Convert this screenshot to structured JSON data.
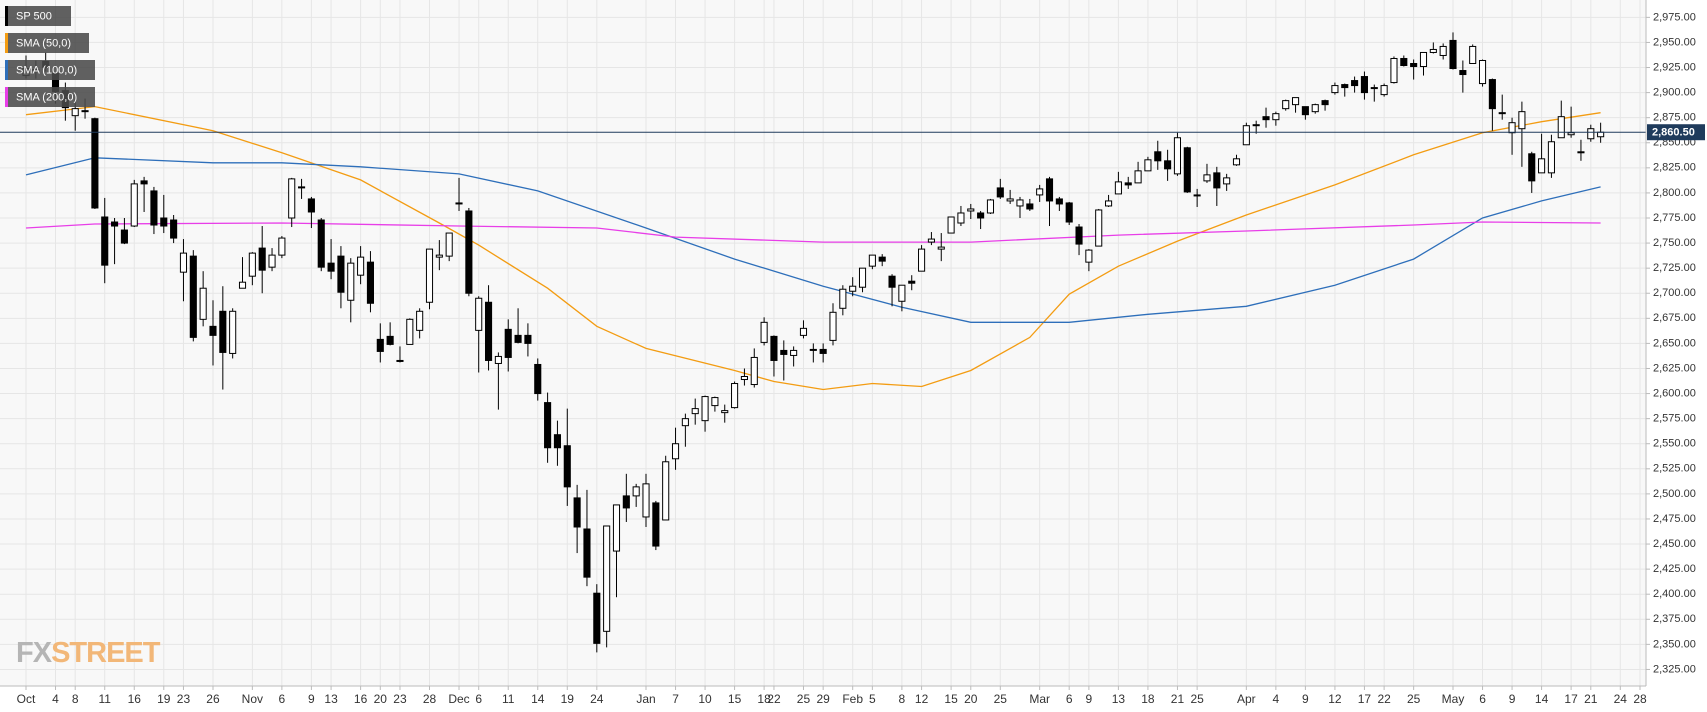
{
  "chart_data": {
    "type": "candlestick",
    "candle_style": {
      "name": "SP 500",
      "color": "#000000",
      "up_color": "#ffffff",
      "down_color": "#000000"
    },
    "categories": [
      "Oct",
      null,
      null,
      "4",
      null,
      "8",
      null,
      null,
      "11",
      null,
      null,
      "16",
      null,
      null,
      "19",
      null,
      "23",
      null,
      null,
      "26",
      null,
      null,
      null,
      "Nov",
      null,
      null,
      "6",
      null,
      null,
      "9",
      null,
      "13",
      null,
      null,
      "16",
      null,
      "20",
      null,
      "23",
      null,
      null,
      "28",
      null,
      null,
      "Dec",
      null,
      "6",
      null,
      null,
      "11",
      null,
      null,
      "14",
      null,
      null,
      "19",
      null,
      null,
      "24",
      null,
      null,
      null,
      null,
      "Jan",
      null,
      null,
      "7",
      null,
      null,
      "10",
      null,
      null,
      "15",
      null,
      null,
      "18",
      "22",
      null,
      null,
      "25",
      null,
      "29",
      null,
      null,
      "Feb",
      null,
      "5",
      null,
      null,
      "8",
      null,
      "12",
      null,
      null,
      "15",
      null,
      "20",
      null,
      null,
      "25",
      null,
      null,
      null,
      "Mar",
      null,
      null,
      "6",
      null,
      "9",
      null,
      null,
      "13",
      null,
      null,
      "18",
      null,
      null,
      "21",
      null,
      "25",
      null,
      null,
      null,
      null,
      "Apr",
      null,
      null,
      "4",
      null,
      null,
      "9",
      null,
      null,
      "12",
      null,
      null,
      "17",
      null,
      "22",
      null,
      null,
      "25",
      null,
      null,
      null,
      "May",
      null,
      null,
      "6",
      null,
      null,
      "9",
      null,
      null,
      "14",
      null,
      null,
      "17",
      null,
      "21",
      null,
      null,
      "24",
      null,
      "28"
    ],
    "candles": [
      [
        2917,
        2937,
        2914,
        2924
      ],
      [
        2923,
        2932,
        2914,
        2923
      ],
      [
        2931,
        2940,
        2921,
        2925
      ],
      [
        2919,
        2920,
        2889,
        2901
      ],
      [
        2902,
        2910,
        2872,
        2885
      ],
      [
        2877,
        2894,
        2862,
        2884
      ],
      [
        2882,
        2894,
        2874,
        2881
      ],
      [
        2874,
        2875,
        2784,
        2785
      ],
      [
        2776,
        2795,
        2710,
        2728
      ],
      [
        2771,
        2775,
        2729,
        2767
      ],
      [
        2763,
        2775,
        2749,
        2750
      ],
      [
        2767,
        2813,
        2766,
        2809
      ],
      [
        2812,
        2816,
        2781,
        2809
      ],
      [
        2802,
        2806,
        2759,
        2768
      ],
      [
        2775,
        2798,
        2760,
        2767
      ],
      [
        2773,
        2778,
        2750,
        2755
      ],
      [
        2721,
        2754,
        2692,
        2740
      ],
      [
        2737,
        2743,
        2652,
        2656
      ],
      [
        2674,
        2722,
        2667,
        2705
      ],
      [
        2667,
        2693,
        2628,
        2658
      ],
      [
        2682,
        2707,
        2604,
        2641
      ],
      [
        2640,
        2685,
        2635,
        2682
      ],
      [
        2705,
        2736,
        2705,
        2711
      ],
      [
        2717,
        2741,
        2708,
        2740
      ],
      [
        2745,
        2767,
        2700,
        2723
      ],
      [
        2726,
        2745,
        2722,
        2738
      ],
      [
        2738,
        2757,
        2735,
        2755
      ],
      [
        2775,
        2815,
        2766,
        2814
      ],
      [
        2806,
        2814,
        2794,
        2806
      ],
      [
        2794,
        2796,
        2765,
        2781
      ],
      [
        2773,
        2775,
        2722,
        2726
      ],
      [
        2730,
        2754,
        2714,
        2722
      ],
      [
        2737,
        2747,
        2685,
        2701
      ],
      [
        2693,
        2735,
        2671,
        2730
      ],
      [
        2718,
        2747,
        2709,
        2736
      ],
      [
        2731,
        2742,
        2681,
        2690
      ],
      [
        2654,
        2670,
        2631,
        2642
      ],
      [
        2657,
        2671,
        2648,
        2649
      ],
      [
        2633,
        2647,
        2631,
        2633
      ],
      [
        2649,
        2675,
        2649,
        2674
      ],
      [
        2663,
        2685,
        2655,
        2682
      ],
      [
        2691,
        2744,
        2684,
        2744
      ],
      [
        2736,
        2753,
        2723,
        2738
      ],
      [
        2737,
        2760,
        2732,
        2760
      ],
      [
        2790,
        2815,
        2782,
        2790
      ],
      [
        2782,
        2785,
        2697,
        2700
      ],
      [
        2663,
        2697,
        2621,
        2695
      ],
      [
        2691,
        2708,
        2623,
        2633
      ],
      [
        2630,
        2641,
        2584,
        2637
      ],
      [
        2664,
        2674,
        2622,
        2636
      ],
      [
        2658,
        2685,
        2650,
        2651
      ],
      [
        2658,
        2670,
        2637,
        2650
      ],
      [
        2629,
        2635,
        2593,
        2600
      ],
      [
        2591,
        2601,
        2531,
        2546
      ],
      [
        2559,
        2573,
        2528,
        2546
      ],
      [
        2548,
        2585,
        2488,
        2507
      ],
      [
        2496,
        2509,
        2441,
        2467
      ],
      [
        2465,
        2504,
        2408,
        2417
      ],
      [
        2401,
        2410,
        2342,
        2351
      ],
      [
        2363,
        2467,
        2347,
        2468
      ],
      [
        2443,
        2489,
        2397,
        2489
      ],
      [
        2498,
        2520,
        2472,
        2486
      ],
      [
        2498,
        2510,
        2487,
        2507
      ],
      [
        2477,
        2520,
        2467,
        2510
      ],
      [
        2491,
        2493,
        2444,
        2448
      ],
      [
        2474,
        2538,
        2474,
        2532
      ],
      [
        2535,
        2566,
        2524,
        2550
      ],
      [
        2568,
        2580,
        2547,
        2575
      ],
      [
        2580,
        2595,
        2569,
        2585
      ],
      [
        2573,
        2598,
        2562,
        2597
      ],
      [
        2588,
        2597,
        2582,
        2596
      ],
      [
        2581,
        2589,
        2571,
        2583
      ],
      [
        2586,
        2612,
        2585,
        2610
      ],
      [
        2614,
        2625,
        2608,
        2617
      ],
      [
        2609,
        2645,
        2606,
        2636
      ],
      [
        2651,
        2676,
        2648,
        2671
      ],
      [
        2657,
        2658,
        2617,
        2633
      ],
      [
        2643,
        2653,
        2613,
        2639
      ],
      [
        2638,
        2647,
        2627,
        2643
      ],
      [
        2658,
        2673,
        2655,
        2665
      ],
      [
        2644,
        2650,
        2631,
        2644
      ],
      [
        2644,
        2650,
        2631,
        2640
      ],
      [
        2653,
        2690,
        2648,
        2681
      ],
      [
        2685,
        2708,
        2678,
        2704
      ],
      [
        2702,
        2716,
        2697,
        2707
      ],
      [
        2706,
        2725,
        2701,
        2725
      ],
      [
        2727,
        2738,
        2724,
        2738
      ],
      [
        2736,
        2739,
        2727,
        2732
      ],
      [
        2717,
        2719,
        2687,
        2706
      ],
      [
        2692,
        2708,
        2682,
        2708
      ],
      [
        2712,
        2718,
        2703,
        2710
      ],
      [
        2722,
        2748,
        2722,
        2744
      ],
      [
        2751,
        2761,
        2748,
        2754
      ],
      [
        2744,
        2760,
        2732,
        2746
      ],
      [
        2760,
        2776,
        2760,
        2776
      ],
      [
        2770,
        2787,
        2767,
        2780
      ],
      [
        2782,
        2789,
        2774,
        2784
      ],
      [
        2780,
        2782,
        2764,
        2775
      ],
      [
        2780,
        2794,
        2779,
        2793
      ],
      [
        2805,
        2814,
        2794,
        2796
      ],
      [
        2792,
        2803,
        2789,
        2794
      ],
      [
        2787,
        2796,
        2775,
        2793
      ],
      [
        2789,
        2794,
        2782,
        2784
      ],
      [
        2798,
        2808,
        2791,
        2804
      ],
      [
        2814,
        2816,
        2767,
        2792
      ],
      [
        2794,
        2796,
        2782,
        2789
      ],
      [
        2790,
        2791,
        2768,
        2771
      ],
      [
        2766,
        2769,
        2738,
        2749
      ],
      [
        2731,
        2744,
        2722,
        2743
      ],
      [
        2747,
        2784,
        2747,
        2783
      ],
      [
        2787,
        2798,
        2786,
        2792
      ],
      [
        2799,
        2821,
        2799,
        2811
      ],
      [
        2810,
        2816,
        2804,
        2808
      ],
      [
        2810,
        2831,
        2810,
        2822
      ],
      [
        2822,
        2836,
        2822,
        2833
      ],
      [
        2841,
        2852,
        2823,
        2832
      ],
      [
        2832,
        2843,
        2812,
        2824
      ],
      [
        2819,
        2860,
        2817,
        2855
      ],
      [
        2845,
        2846,
        2800,
        2801
      ],
      [
        2797,
        2804,
        2786,
        2798
      ],
      [
        2812,
        2829,
        2810,
        2818
      ],
      [
        2820,
        2826,
        2787,
        2805
      ],
      [
        2809,
        2819,
        2802,
        2815
      ],
      [
        2828,
        2838,
        2827,
        2834
      ],
      [
        2848,
        2870,
        2848,
        2867
      ],
      [
        2868,
        2872,
        2859,
        2867
      ],
      [
        2876,
        2885,
        2865,
        2873
      ],
      [
        2873,
        2881,
        2867,
        2879
      ],
      [
        2884,
        2893,
        2882,
        2892
      ],
      [
        2888,
        2895,
        2880,
        2895
      ],
      [
        2886,
        2886,
        2873,
        2878
      ],
      [
        2881,
        2889,
        2879,
        2888
      ],
      [
        2892,
        2893,
        2882,
        2888
      ],
      [
        2900,
        2910,
        2898,
        2907
      ],
      [
        2908,
        2909,
        2896,
        2905
      ],
      [
        2912,
        2916,
        2900,
        2907
      ],
      [
        2916,
        2921,
        2893,
        2900
      ],
      [
        2904,
        2908,
        2891,
        2905
      ],
      [
        2898,
        2909,
        2896,
        2907
      ],
      [
        2910,
        2936,
        2909,
        2934
      ],
      [
        2934,
        2937,
        2926,
        2927
      ],
      [
        2929,
        2933,
        2913,
        2926
      ],
      [
        2926,
        2940,
        2917,
        2940
      ],
      [
        2940,
        2950,
        2939,
        2943
      ],
      [
        2937,
        2949,
        2933,
        2946
      ],
      [
        2952,
        2960,
        2923,
        2924
      ],
      [
        2922,
        2932,
        2900,
        2918
      ],
      [
        2929,
        2948,
        2929,
        2946
      ],
      [
        2909,
        2933,
        2906,
        2932
      ],
      [
        2913,
        2914,
        2862,
        2884
      ],
      [
        2880,
        2898,
        2873,
        2880
      ],
      [
        2860,
        2875,
        2838,
        2870
      ],
      [
        2864,
        2891,
        2826,
        2881
      ],
      [
        2839,
        2841,
        2800,
        2812
      ],
      [
        2820,
        2859,
        2820,
        2834
      ],
      [
        2820,
        2858,
        2815,
        2851
      ],
      [
        2855,
        2892,
        2855,
        2876
      ],
      [
        2858,
        2886,
        2855,
        2860
      ],
      [
        2841,
        2853,
        2832,
        2840
      ],
      [
        2854,
        2868,
        2851,
        2864
      ],
      [
        2856,
        2870,
        2850,
        2860.5
      ],
      null,
      null,
      null,
      null
    ],
    "series": [
      {
        "name": "SMA (50,0)",
        "color": "#f39c12",
        "x": [
          0,
          7,
          19,
          26,
          34,
          42,
          46,
          53,
          58,
          63,
          72,
          76,
          81,
          86,
          91,
          96,
          102,
          106,
          111,
          117,
          124,
          133,
          141,
          148,
          154,
          160
        ],
        "values": [
          2878,
          2886,
          2862,
          2840,
          2813,
          2770,
          2748,
          2705,
          2667,
          2645,
          2623,
          2612,
          2604,
          2610,
          2607,
          2623,
          2656,
          2699,
          2727,
          2752,
          2778,
          2808,
          2838,
          2860,
          2871,
          2880
        ]
      },
      {
        "name": "SMA (100,0)",
        "color": "#2e6fba",
        "x": [
          0,
          7,
          19,
          26,
          34,
          44,
          52,
          63,
          72,
          81,
          89,
          96,
          106,
          114,
          124,
          133,
          141,
          148,
          154,
          160
        ],
        "values": [
          2818,
          2835,
          2830,
          2830,
          2826,
          2819,
          2802,
          2765,
          2734,
          2707,
          2686,
          2671,
          2671,
          2679,
          2687,
          2708,
          2734,
          2775,
          2792,
          2806
        ]
      },
      {
        "name": "SMA (200,0)",
        "color": "#e83ee8",
        "x": [
          0,
          7,
          26,
          44,
          58,
          66,
          81,
          96,
          111,
          124,
          141,
          148,
          160
        ],
        "values": [
          2765,
          2769,
          2770,
          2767,
          2765,
          2756,
          2751,
          2751,
          2758,
          2762,
          2768,
          2771,
          2770
        ]
      }
    ],
    "last_price": {
      "value": 2860.5,
      "label": "2,860.50"
    },
    "ylim": [
      2308.5,
      2992.3
    ],
    "yticks": [
      {
        "value": 2325,
        "label": "2,325.00"
      },
      {
        "value": 2350,
        "label": "2,350.00"
      },
      {
        "value": 2375,
        "label": "2,375.00"
      },
      {
        "value": 2400,
        "label": "2,400.00"
      },
      {
        "value": 2425,
        "label": "2,425.00"
      },
      {
        "value": 2450,
        "label": "2,450.00"
      },
      {
        "value": 2475,
        "label": "2,475.00"
      },
      {
        "value": 2500,
        "label": "2,500.00"
      },
      {
        "value": 2525,
        "label": "2,525.00"
      },
      {
        "value": 2550,
        "label": "2,550.00"
      },
      {
        "value": 2575,
        "label": "2,575.00"
      },
      {
        "value": 2600,
        "label": "2,600.00"
      },
      {
        "value": 2625,
        "label": "2,625.00"
      },
      {
        "value": 2650,
        "label": "2,650.00"
      },
      {
        "value": 2675,
        "label": "2,675.00"
      },
      {
        "value": 2700,
        "label": "2,700.00"
      },
      {
        "value": 2725,
        "label": "2,725.00"
      },
      {
        "value": 2750,
        "label": "2,750.00"
      },
      {
        "value": 2775,
        "label": "2,775.00"
      },
      {
        "value": 2800,
        "label": "2,800.00"
      },
      {
        "value": 2825,
        "label": "2,825.00"
      },
      {
        "value": 2850,
        "label": "2,850.00"
      },
      {
        "value": 2875,
        "label": "2,875.00"
      },
      {
        "value": 2900,
        "label": "2,900.00"
      },
      {
        "value": 2925,
        "label": "2,925.00"
      },
      {
        "value": 2950,
        "label": "2,950.00"
      },
      {
        "value": 2975,
        "label": "2,975.00"
      }
    ],
    "grid": true,
    "logo": [
      "FX",
      "STREET"
    ]
  }
}
